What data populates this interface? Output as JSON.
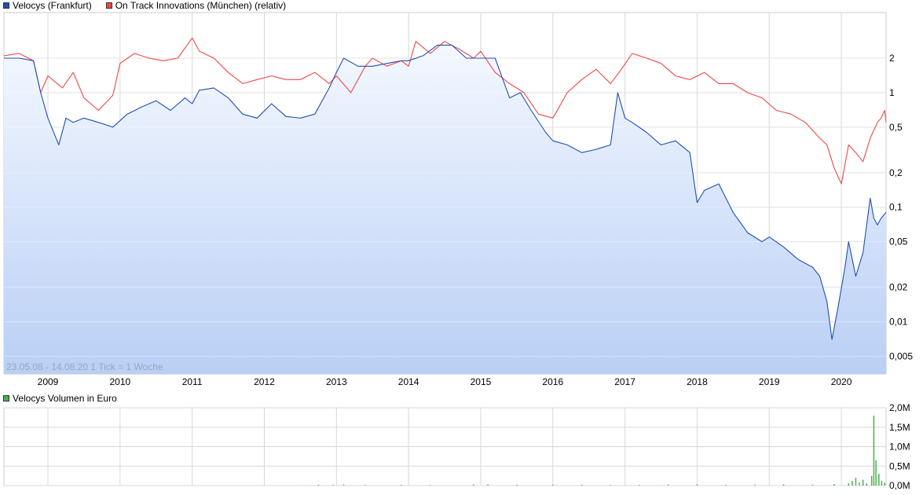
{
  "legend": {
    "series1": "Velocys (Frankfurt)",
    "series2": "On Track Innovations (München) (relativ)",
    "volume": "Velocys Volumen in Euro"
  },
  "footer_note": "23.05.08 - 14.08.20   1 Tick = 1 Woche",
  "colors": {
    "series1": "#1f4fb4",
    "series2": "#f04848",
    "volume": "#4caf50",
    "area_top": "#f4f8ff",
    "area_bottom": "#b9cff5",
    "grid": "#d8d8d8"
  },
  "chart_data": [
    {
      "type": "line",
      "title": "",
      "y_scale": "log",
      "ylim": [
        0.0035,
        5
      ],
      "xlim": [
        2008.39,
        2020.62
      ],
      "x_ticks": [
        "2009",
        "2010",
        "2011",
        "2012",
        "2013",
        "2014",
        "2015",
        "2016",
        "2017",
        "2018",
        "2019",
        "2020"
      ],
      "y_ticks": [
        "2",
        "1",
        "0,5",
        "0,2",
        "0,1",
        "0,05",
        "0,02",
        "0,01",
        "0,005"
      ],
      "y_tick_values": [
        2,
        1,
        0.5,
        0.2,
        0.1,
        0.05,
        0.02,
        0.01,
        0.005
      ],
      "series": [
        {
          "name": "Velocys (Frankfurt)",
          "x": [
            2008.39,
            2008.6,
            2008.8,
            2008.9,
            2009.0,
            2009.15,
            2009.25,
            2009.35,
            2009.5,
            2009.7,
            2009.9,
            2010.1,
            2010.3,
            2010.5,
            2010.7,
            2010.9,
            2011.0,
            2011.1,
            2011.3,
            2011.5,
            2011.7,
            2011.9,
            2012.1,
            2012.3,
            2012.5,
            2012.7,
            2012.9,
            2013.0,
            2013.1,
            2013.3,
            2013.5,
            2013.7,
            2013.9,
            2014.0,
            2014.2,
            2014.4,
            2014.6,
            2014.8,
            2015.0,
            2015.2,
            2015.4,
            2015.55,
            2015.7,
            2015.9,
            2016.0,
            2016.2,
            2016.4,
            2016.6,
            2016.8,
            2016.9,
            2017.0,
            2017.1,
            2017.3,
            2017.5,
            2017.7,
            2017.9,
            2018.0,
            2018.1,
            2018.3,
            2018.5,
            2018.7,
            2018.9,
            2019.0,
            2019.2,
            2019.4,
            2019.6,
            2019.7,
            2019.8,
            2019.87,
            2019.95,
            2020.05,
            2020.1,
            2020.2,
            2020.3,
            2020.4,
            2020.45,
            2020.5,
            2020.55,
            2020.62
          ],
          "y": [
            2.0,
            2.0,
            1.9,
            1.0,
            0.6,
            0.35,
            0.6,
            0.55,
            0.6,
            0.55,
            0.5,
            0.65,
            0.75,
            0.85,
            0.7,
            0.9,
            0.8,
            1.05,
            1.1,
            0.9,
            0.65,
            0.6,
            0.8,
            0.62,
            0.6,
            0.65,
            1.1,
            1.5,
            2.0,
            1.7,
            1.7,
            1.8,
            1.9,
            1.9,
            2.1,
            2.6,
            2.6,
            2.0,
            2.0,
            2.0,
            0.9,
            1.0,
            0.7,
            0.45,
            0.38,
            0.35,
            0.3,
            0.32,
            0.35,
            1.0,
            0.6,
            0.55,
            0.45,
            0.35,
            0.38,
            0.3,
            0.11,
            0.14,
            0.16,
            0.09,
            0.06,
            0.05,
            0.055,
            0.045,
            0.035,
            0.03,
            0.025,
            0.015,
            0.007,
            0.013,
            0.03,
            0.05,
            0.025,
            0.04,
            0.12,
            0.08,
            0.07,
            0.08,
            0.09
          ]
        },
        {
          "name": "On Track Innovations (München) (relativ)",
          "x": [
            2008.39,
            2008.6,
            2008.8,
            2008.9,
            2009.0,
            2009.2,
            2009.35,
            2009.5,
            2009.7,
            2009.9,
            2010.0,
            2010.2,
            2010.4,
            2010.6,
            2010.8,
            2011.0,
            2011.1,
            2011.3,
            2011.5,
            2011.7,
            2011.9,
            2012.1,
            2012.3,
            2012.5,
            2012.7,
            2012.9,
            2013.0,
            2013.2,
            2013.4,
            2013.5,
            2013.7,
            2013.9,
            2014.0,
            2014.1,
            2014.3,
            2014.5,
            2014.7,
            2014.9,
            2015.0,
            2015.2,
            2015.4,
            2015.6,
            2015.8,
            2016.0,
            2016.2,
            2016.4,
            2016.6,
            2016.8,
            2016.95,
            2017.1,
            2017.3,
            2017.5,
            2017.7,
            2017.9,
            2018.1,
            2018.3,
            2018.5,
            2018.7,
            2018.9,
            2019.1,
            2019.3,
            2019.5,
            2019.7,
            2019.8,
            2019.9,
            2020.0,
            2020.1,
            2020.2,
            2020.3,
            2020.4,
            2020.5,
            2020.55,
            2020.6,
            2020.62
          ],
          "y": [
            2.1,
            2.2,
            1.9,
            1.0,
            1.4,
            1.1,
            1.5,
            0.9,
            0.7,
            0.95,
            1.8,
            2.2,
            2.0,
            1.9,
            2.0,
            3.0,
            2.3,
            2.0,
            1.5,
            1.2,
            1.3,
            1.4,
            1.3,
            1.3,
            1.5,
            1.2,
            1.4,
            1.0,
            1.7,
            2.0,
            1.7,
            1.9,
            1.7,
            2.8,
            2.2,
            2.8,
            2.4,
            2.0,
            2.3,
            1.5,
            1.2,
            1.0,
            0.65,
            0.6,
            1.0,
            1.3,
            1.6,
            1.2,
            1.6,
            2.2,
            2.0,
            1.8,
            1.4,
            1.3,
            1.5,
            1.2,
            1.2,
            1.0,
            0.9,
            0.7,
            0.65,
            0.55,
            0.4,
            0.35,
            0.22,
            0.16,
            0.35,
            0.3,
            0.25,
            0.4,
            0.55,
            0.6,
            0.7,
            0.55
          ]
        }
      ]
    },
    {
      "type": "bar",
      "title": "",
      "ylim": [
        0,
        2000000
      ],
      "y_ticks": [
        "2,0M",
        "1,5M",
        "1,0M",
        "0,5M",
        "0,0M"
      ],
      "y_tick_values": [
        2000000,
        1500000,
        1000000,
        500000,
        0
      ],
      "series": [
        {
          "name": "Velocys Volumen in Euro",
          "x": [
            2012.75,
            2012.95,
            2013.1,
            2013.4,
            2013.9,
            2014.3,
            2014.9,
            2015.1,
            2015.5,
            2016.0,
            2016.4,
            2016.8,
            2017.2,
            2017.6,
            2018.0,
            2018.4,
            2018.8,
            2019.2,
            2019.6,
            2019.9,
            2020.1,
            2020.15,
            2020.2,
            2020.25,
            2020.3,
            2020.35,
            2020.42,
            2020.45,
            2020.48,
            2020.52,
            2020.56,
            2020.6
          ],
          "y": [
            20000,
            15000,
            25000,
            15000,
            20000,
            15000,
            25000,
            30000,
            20000,
            25000,
            20000,
            15000,
            20000,
            25000,
            30000,
            20000,
            25000,
            30000,
            20000,
            40000,
            60000,
            120000,
            200000,
            80000,
            150000,
            60000,
            250000,
            1800000,
            650000,
            300000,
            120000,
            80000
          ]
        }
      ]
    }
  ]
}
